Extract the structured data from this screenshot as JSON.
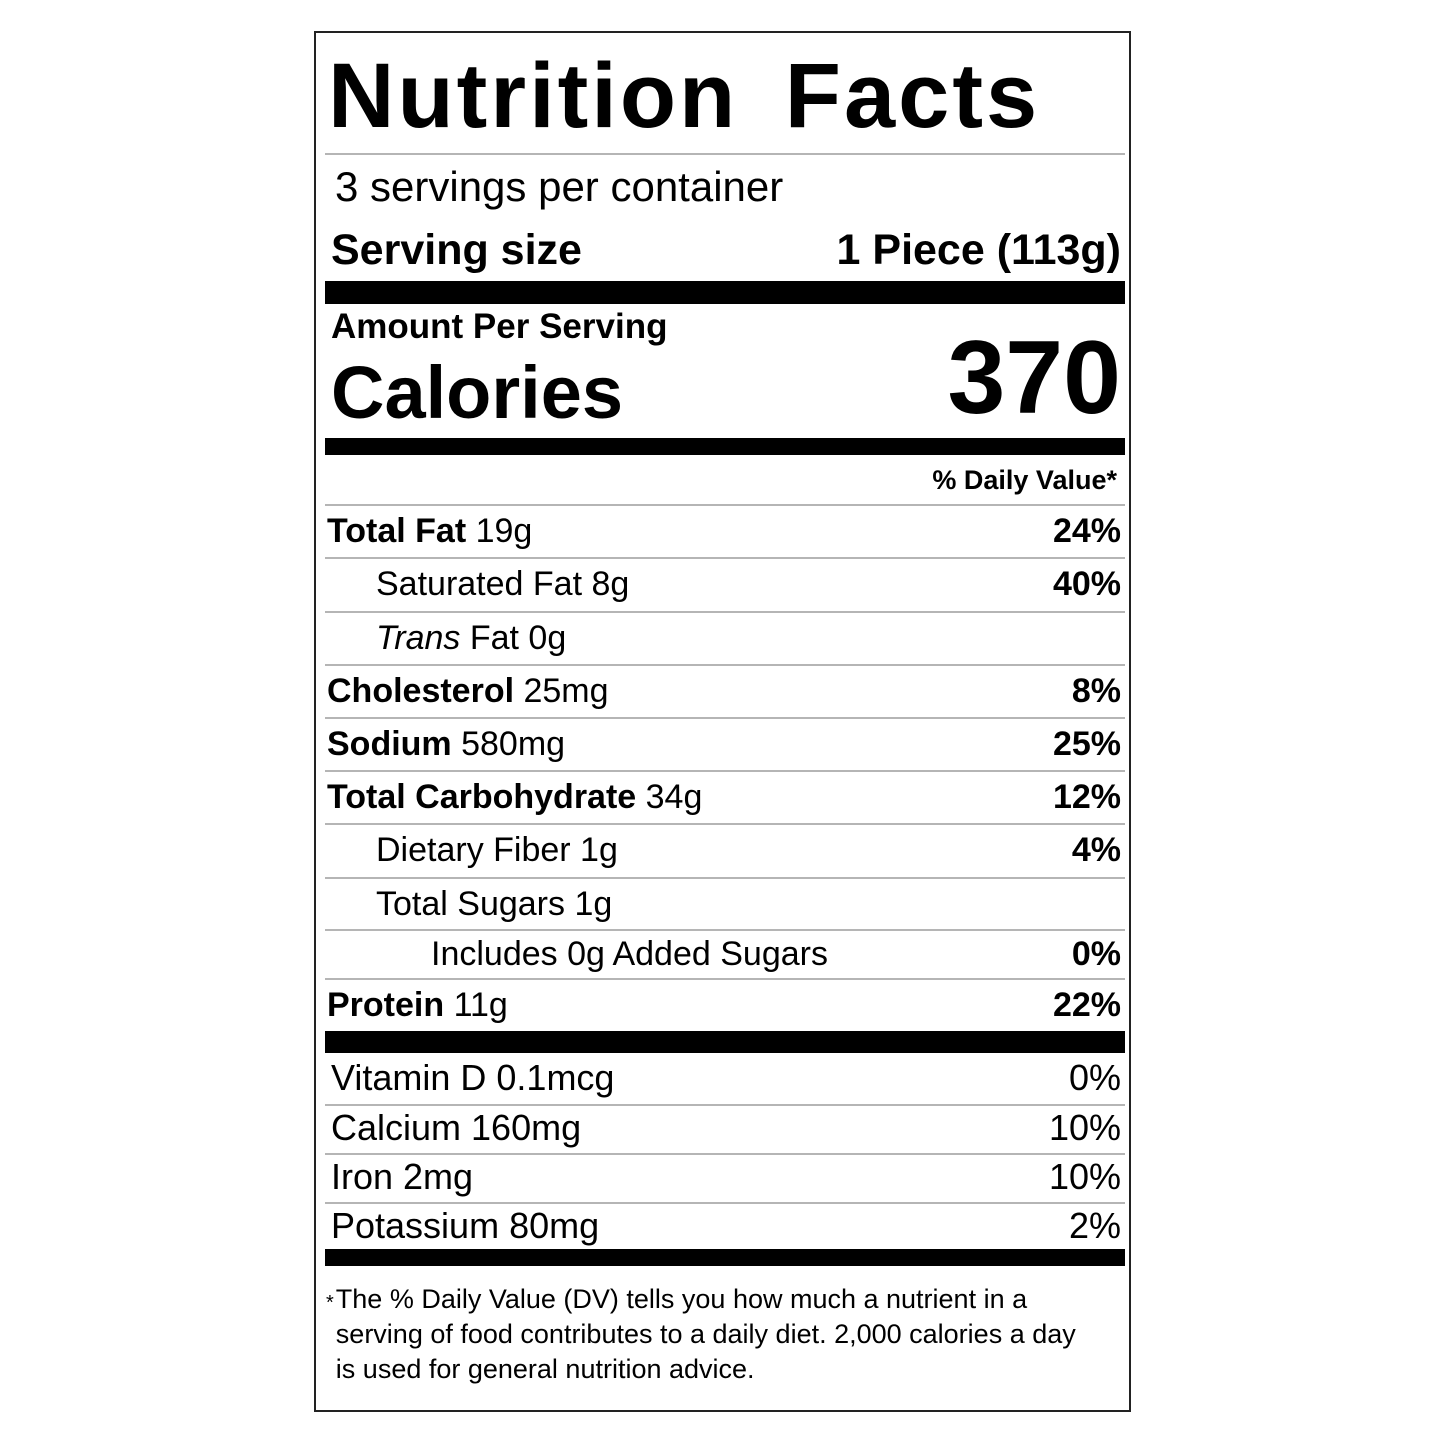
{
  "title": "Nutrition Facts",
  "servings_per_container": "3 servings per container",
  "serving_size": {
    "label": "Serving size",
    "value": "1 Piece (113g)"
  },
  "amount_per_serving": "Amount Per Serving",
  "calories": {
    "label": "Calories",
    "value": "370"
  },
  "daily_value_header": "% Daily Value*",
  "nutrients": [
    {
      "name": "Total Fat",
      "amount": "19g",
      "dv": "24%",
      "bold": true,
      "indent": 0
    },
    {
      "name": "Saturated Fat",
      "amount": "8g",
      "dv": "40%",
      "bold": false,
      "indent": 1
    },
    {
      "name": "Trans",
      "name_suffix": "Fat",
      "amount": "0g",
      "dv": "",
      "bold": false,
      "indent": 1,
      "italic_prefix": true
    },
    {
      "name": "Cholesterol",
      "amount": "25mg",
      "dv": "8%",
      "bold": true,
      "indent": 0
    },
    {
      "name": "Sodium",
      "amount": "580mg",
      "dv": "25%",
      "bold": true,
      "indent": 0
    },
    {
      "name": "Total Carbohydrate",
      "amount": "34g",
      "dv": "12%",
      "bold": true,
      "indent": 0
    },
    {
      "name": "Dietary Fiber",
      "amount": "1g",
      "dv": "4%",
      "bold": false,
      "indent": 1
    },
    {
      "name": "Total Sugars",
      "amount": "1g",
      "dv": "",
      "bold": false,
      "indent": 1
    },
    {
      "name": "Includes 0g Added Sugars",
      "amount": "",
      "dv": "0%",
      "bold": false,
      "indent": 2
    },
    {
      "name": "Protein",
      "amount": "11g",
      "dv": "22%",
      "bold": true,
      "indent": 0
    }
  ],
  "vitamins": [
    {
      "name": "Vitamin D 0.1mcg",
      "dv": "0%"
    },
    {
      "name": "Calcium 160mg",
      "dv": "10%"
    },
    {
      "name": "Iron 2mg",
      "dv": "10%"
    },
    {
      "name": "Potassium 80mg",
      "dv": "2%"
    }
  ],
  "footnote": {
    "star": "*",
    "text": "The % Daily Value (DV) tells you how much a nutrient in a serving of food contributes to a daily diet. 2,000 calories a day is used for general nutrition advice."
  }
}
